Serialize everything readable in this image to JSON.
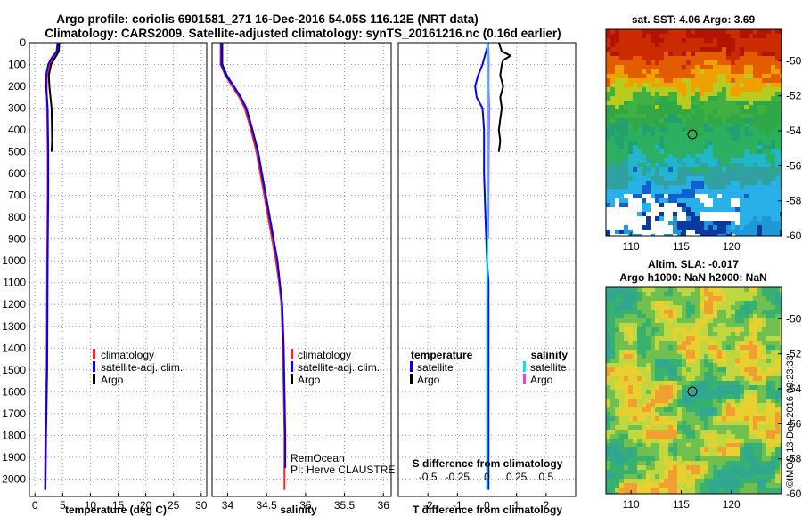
{
  "title_line1": "Argo profile: coriolis 6901581_271 16-Dec-2016 54.05S 116.12E (NRT data)",
  "title_line2": "Climatology: CARS2009. Satellite-adjusted climatology: synTS_20161216.nc (0.16d earlier)",
  "credit_line1": "RemOcean",
  "credit_line2": "PI: Herve CLAUSTRE",
  "watermark": "©IMOS 13-Dec-2016 09:23:33",
  "chart_data": [
    {
      "id": "temperature",
      "type": "line",
      "xlabel": "temperature (deg C)",
      "ylabel": "depth",
      "xlim": [
        -1,
        31
      ],
      "ylim": [
        2080,
        0
      ],
      "xticks": [
        0,
        5,
        10,
        15,
        20,
        25,
        30
      ],
      "yticks": [
        0,
        100,
        200,
        300,
        400,
        500,
        600,
        700,
        800,
        900,
        1000,
        1100,
        1200,
        1300,
        1400,
        1500,
        1600,
        1700,
        1800,
        1900,
        2000
      ],
      "legend": [
        "climatology",
        "satellite-adj. clim.",
        "Argo"
      ],
      "series": [
        {
          "name": "climatology",
          "color": "#ff2020",
          "width": 2,
          "points": [
            [
              4.1,
              0
            ],
            [
              4.0,
              40
            ],
            [
              3.2,
              70
            ],
            [
              2.6,
              100
            ],
            [
              2.2,
              150
            ],
            [
              2.1,
              200
            ],
            [
              2.2,
              300
            ],
            [
              2.3,
              500
            ],
            [
              2.3,
              700
            ],
            [
              2.2,
              1000
            ],
            [
              2.1,
              1500
            ],
            [
              1.9,
              1800
            ],
            [
              1.8,
              2050
            ]
          ]
        },
        {
          "name": "Argo",
          "color": "#000000",
          "width": 2,
          "points": [
            [
              4.4,
              0
            ],
            [
              4.3,
              40
            ],
            [
              3.6,
              70
            ],
            [
              2.9,
              100
            ],
            [
              2.5,
              150
            ],
            [
              2.6,
              200
            ],
            [
              3.0,
              300
            ],
            [
              3.1,
              450
            ],
            [
              3.0,
              500
            ]
          ]
        },
        {
          "name": "satellite-adj. clim.",
          "color": "#0000ff",
          "width": 2,
          "points": [
            [
              4.1,
              0
            ],
            [
              3.9,
              40
            ],
            [
              3.0,
              70
            ],
            [
              2.4,
              100
            ],
            [
              2.0,
              150
            ],
            [
              2.0,
              200
            ],
            [
              2.3,
              300
            ],
            [
              2.4,
              500
            ],
            [
              2.4,
              700
            ],
            [
              2.3,
              1000
            ],
            [
              2.2,
              1500
            ],
            [
              2.0,
              1800
            ],
            [
              1.9,
              2050
            ]
          ]
        }
      ]
    },
    {
      "id": "salinity",
      "type": "line",
      "xlabel": "salinity",
      "xlim": [
        33.8,
        36.1
      ],
      "ylim": [
        2080,
        0
      ],
      "xticks": [
        34,
        34.5,
        35,
        35.5,
        36
      ],
      "legend": [
        "climatology",
        "satellite-adj. clim.",
        "Argo"
      ],
      "series": [
        {
          "name": "climatology",
          "color": "#ff2020",
          "width": 2,
          "points": [
            [
              33.91,
              0
            ],
            [
              33.91,
              100
            ],
            [
              33.97,
              150
            ],
            [
              34.06,
              200
            ],
            [
              34.15,
              250
            ],
            [
              34.22,
              300
            ],
            [
              34.3,
              400
            ],
            [
              34.37,
              500
            ],
            [
              34.42,
              600
            ],
            [
              34.47,
              700
            ],
            [
              34.52,
              800
            ],
            [
              34.57,
              900
            ],
            [
              34.62,
              1000
            ],
            [
              34.66,
              1100
            ],
            [
              34.69,
              1200
            ],
            [
              34.71,
              1400
            ],
            [
              34.72,
              1600
            ],
            [
              34.73,
              1800
            ],
            [
              34.73,
              2050
            ]
          ]
        },
        {
          "name": "Argo",
          "color": "#000000",
          "width": 2,
          "points": [
            [
              33.93,
              0
            ],
            [
              33.93,
              100
            ],
            [
              33.99,
              150
            ],
            [
              34.08,
              200
            ],
            [
              34.17,
              250
            ],
            [
              34.24,
              300
            ],
            [
              34.32,
              400
            ],
            [
              34.39,
              500
            ],
            [
              34.44,
              600
            ],
            [
              34.49,
              700
            ],
            [
              34.54,
              800
            ],
            [
              34.59,
              900
            ]
          ]
        },
        {
          "name": "satellite-adj. clim.",
          "color": "#0000ff",
          "width": 2,
          "points": [
            [
              33.92,
              0
            ],
            [
              33.92,
              100
            ],
            [
              33.98,
              150
            ],
            [
              34.08,
              200
            ],
            [
              34.17,
              250
            ],
            [
              34.24,
              300
            ],
            [
              34.32,
              400
            ],
            [
              34.39,
              500
            ],
            [
              34.44,
              600
            ],
            [
              34.49,
              700
            ],
            [
              34.54,
              800
            ],
            [
              34.59,
              900
            ],
            [
              34.64,
              1000
            ],
            [
              34.67,
              1100
            ],
            [
              34.7,
              1200
            ],
            [
              34.72,
              1400
            ],
            [
              34.73,
              1600
            ],
            [
              34.74,
              1800
            ],
            [
              34.74,
              1950
            ]
          ]
        }
      ]
    },
    {
      "id": "difference",
      "type": "line",
      "xlabel": "T difference from climatology",
      "top_axis_label": "S difference from climatology",
      "xlim": [
        -3,
        3
      ],
      "ylim": [
        2080,
        0
      ],
      "xticks": [
        -2,
        -1,
        0,
        1,
        2
      ],
      "xtick_labels": [
        "-2",
        "-1",
        "0",
        "1",
        "2"
      ],
      "top_ticks": [
        -0.5,
        -0.25,
        0,
        0.25,
        0.5
      ],
      "top_tick_labels": [
        "-0.5",
        "-0.25",
        "0",
        "0.25",
        "0.5"
      ],
      "legend_left_title": "temperature",
      "legend_right_title": "salinity",
      "legend_left": [
        "satellite",
        "Argo"
      ],
      "legend_right": [
        "satellite",
        "Argo"
      ],
      "series": [
        {
          "name": "temperature satellite",
          "color": "#0000ff",
          "width": 2,
          "points": [
            [
              0.05,
              0
            ],
            [
              -0.05,
              50
            ],
            [
              -0.15,
              100
            ],
            [
              -0.3,
              150
            ],
            [
              -0.4,
              200
            ],
            [
              -0.35,
              250
            ],
            [
              -0.15,
              300
            ],
            [
              -0.1,
              400
            ],
            [
              -0.1,
              600
            ],
            [
              -0.05,
              800
            ],
            [
              0.0,
              1000
            ],
            [
              0.05,
              1100
            ],
            [
              0.05,
              1500
            ],
            [
              0.05,
              2050
            ]
          ]
        },
        {
          "name": "temperature Argo",
          "color": "#000000",
          "width": 2,
          "points": [
            [
              0.4,
              0
            ],
            [
              0.5,
              40
            ],
            [
              0.8,
              60
            ],
            [
              0.55,
              80
            ],
            [
              0.5,
              100
            ],
            [
              0.45,
              150
            ],
            [
              0.55,
              200
            ],
            [
              0.45,
              250
            ],
            [
              0.5,
              300
            ],
            [
              0.45,
              350
            ],
            [
              0.4,
              400
            ],
            [
              0.45,
              450
            ],
            [
              0.4,
              500
            ]
          ]
        },
        {
          "name": "salinity Argo",
          "color": "#ff33ff",
          "width": 2,
          "points": [
            [
              0.04,
              0
            ],
            [
              0.06,
              100
            ],
            [
              0.05,
              200
            ],
            [
              0.08,
              300
            ],
            [
              0.06,
              500
            ],
            [
              0.05,
              700
            ],
            [
              0.04,
              900
            ]
          ]
        },
        {
          "name": "salinity satellite",
          "color": "#00e5ff",
          "width": 2,
          "points": [
            [
              0.02,
              0
            ],
            [
              0.02,
              100
            ],
            [
              0.03,
              200
            ],
            [
              0.03,
              400
            ],
            [
              0.02,
              600
            ],
            [
              0.02,
              800
            ],
            [
              0.01,
              1000
            ],
            [
              0.0,
              1200
            ],
            [
              0.0,
              1500
            ],
            [
              0.0,
              2050
            ]
          ]
        }
      ]
    },
    {
      "id": "sst_map",
      "type": "heatmap",
      "title": "sat. SST: 4.06 Argo: 3.69",
      "xlim": [
        107.5,
        125
      ],
      "ylim": [
        -60,
        -48.2
      ],
      "xticks": [
        110,
        115,
        120
      ],
      "yticks": [
        -50,
        -52,
        -54,
        -56,
        -58,
        -60
      ],
      "marker": [
        116.12,
        -54.05
      ]
    },
    {
      "id": "sla_map",
      "type": "heatmap",
      "title_line1": "Altim. SLA: -0.017",
      "title_line2": "Argo h1000: NaN h2000: NaN",
      "xlim": [
        107.5,
        125
      ],
      "ylim": [
        -60,
        -48.2
      ],
      "xticks": [
        110,
        115,
        120
      ],
      "yticks": [
        -50,
        -52,
        -54,
        -56,
        -58,
        -60
      ],
      "marker": [
        116.12,
        -54.05
      ]
    }
  ]
}
